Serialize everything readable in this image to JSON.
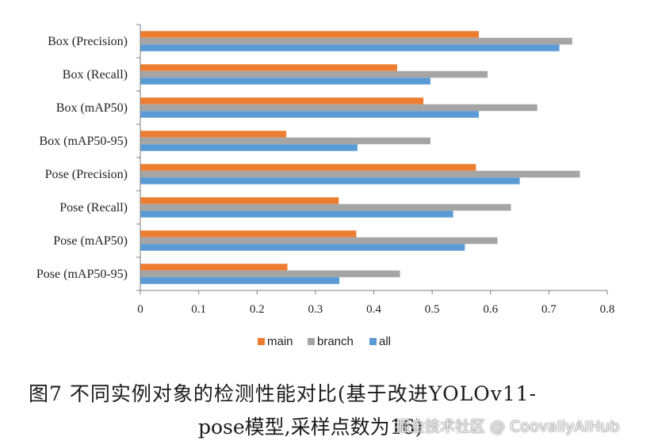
{
  "chart_data": {
    "type": "bar",
    "orientation": "horizontal",
    "categories": [
      "Box (Precision)",
      "Box (Recall)",
      "Box (mAP50)",
      "Box (mAP50-95)",
      "Pose (Precision)",
      "Pose (Recall)",
      "Pose (mAP50)",
      "Pose (mAP50-95)"
    ],
    "series": [
      {
        "name": "main",
        "color": "#ED7D31",
        "values": [
          0.58,
          0.44,
          0.485,
          0.25,
          0.575,
          0.34,
          0.37,
          0.252
        ]
      },
      {
        "name": "branch",
        "color": "#A5A5A5",
        "values": [
          0.74,
          0.595,
          0.68,
          0.497,
          0.753,
          0.635,
          0.612,
          0.445
        ]
      },
      {
        "name": "all",
        "color": "#5B9BD5",
        "values": [
          0.718,
          0.497,
          0.58,
          0.372,
          0.65,
          0.536,
          0.556,
          0.341
        ]
      }
    ],
    "xlim": [
      0,
      0.8
    ],
    "xticks": [
      "0",
      "0.1",
      "0.2",
      "0.3",
      "0.4",
      "0.5",
      "0.6",
      "0.7",
      "0.8"
    ],
    "grid": false,
    "legend_position": "bottom"
  },
  "caption": {
    "line1": "图7  不同实例对象的检测性能对比(基于改进YOLOv11-",
    "line2": "pose模型,采样点数为16)"
  },
  "watermark": "掘金技术社区 @ CoovallyAIHub"
}
